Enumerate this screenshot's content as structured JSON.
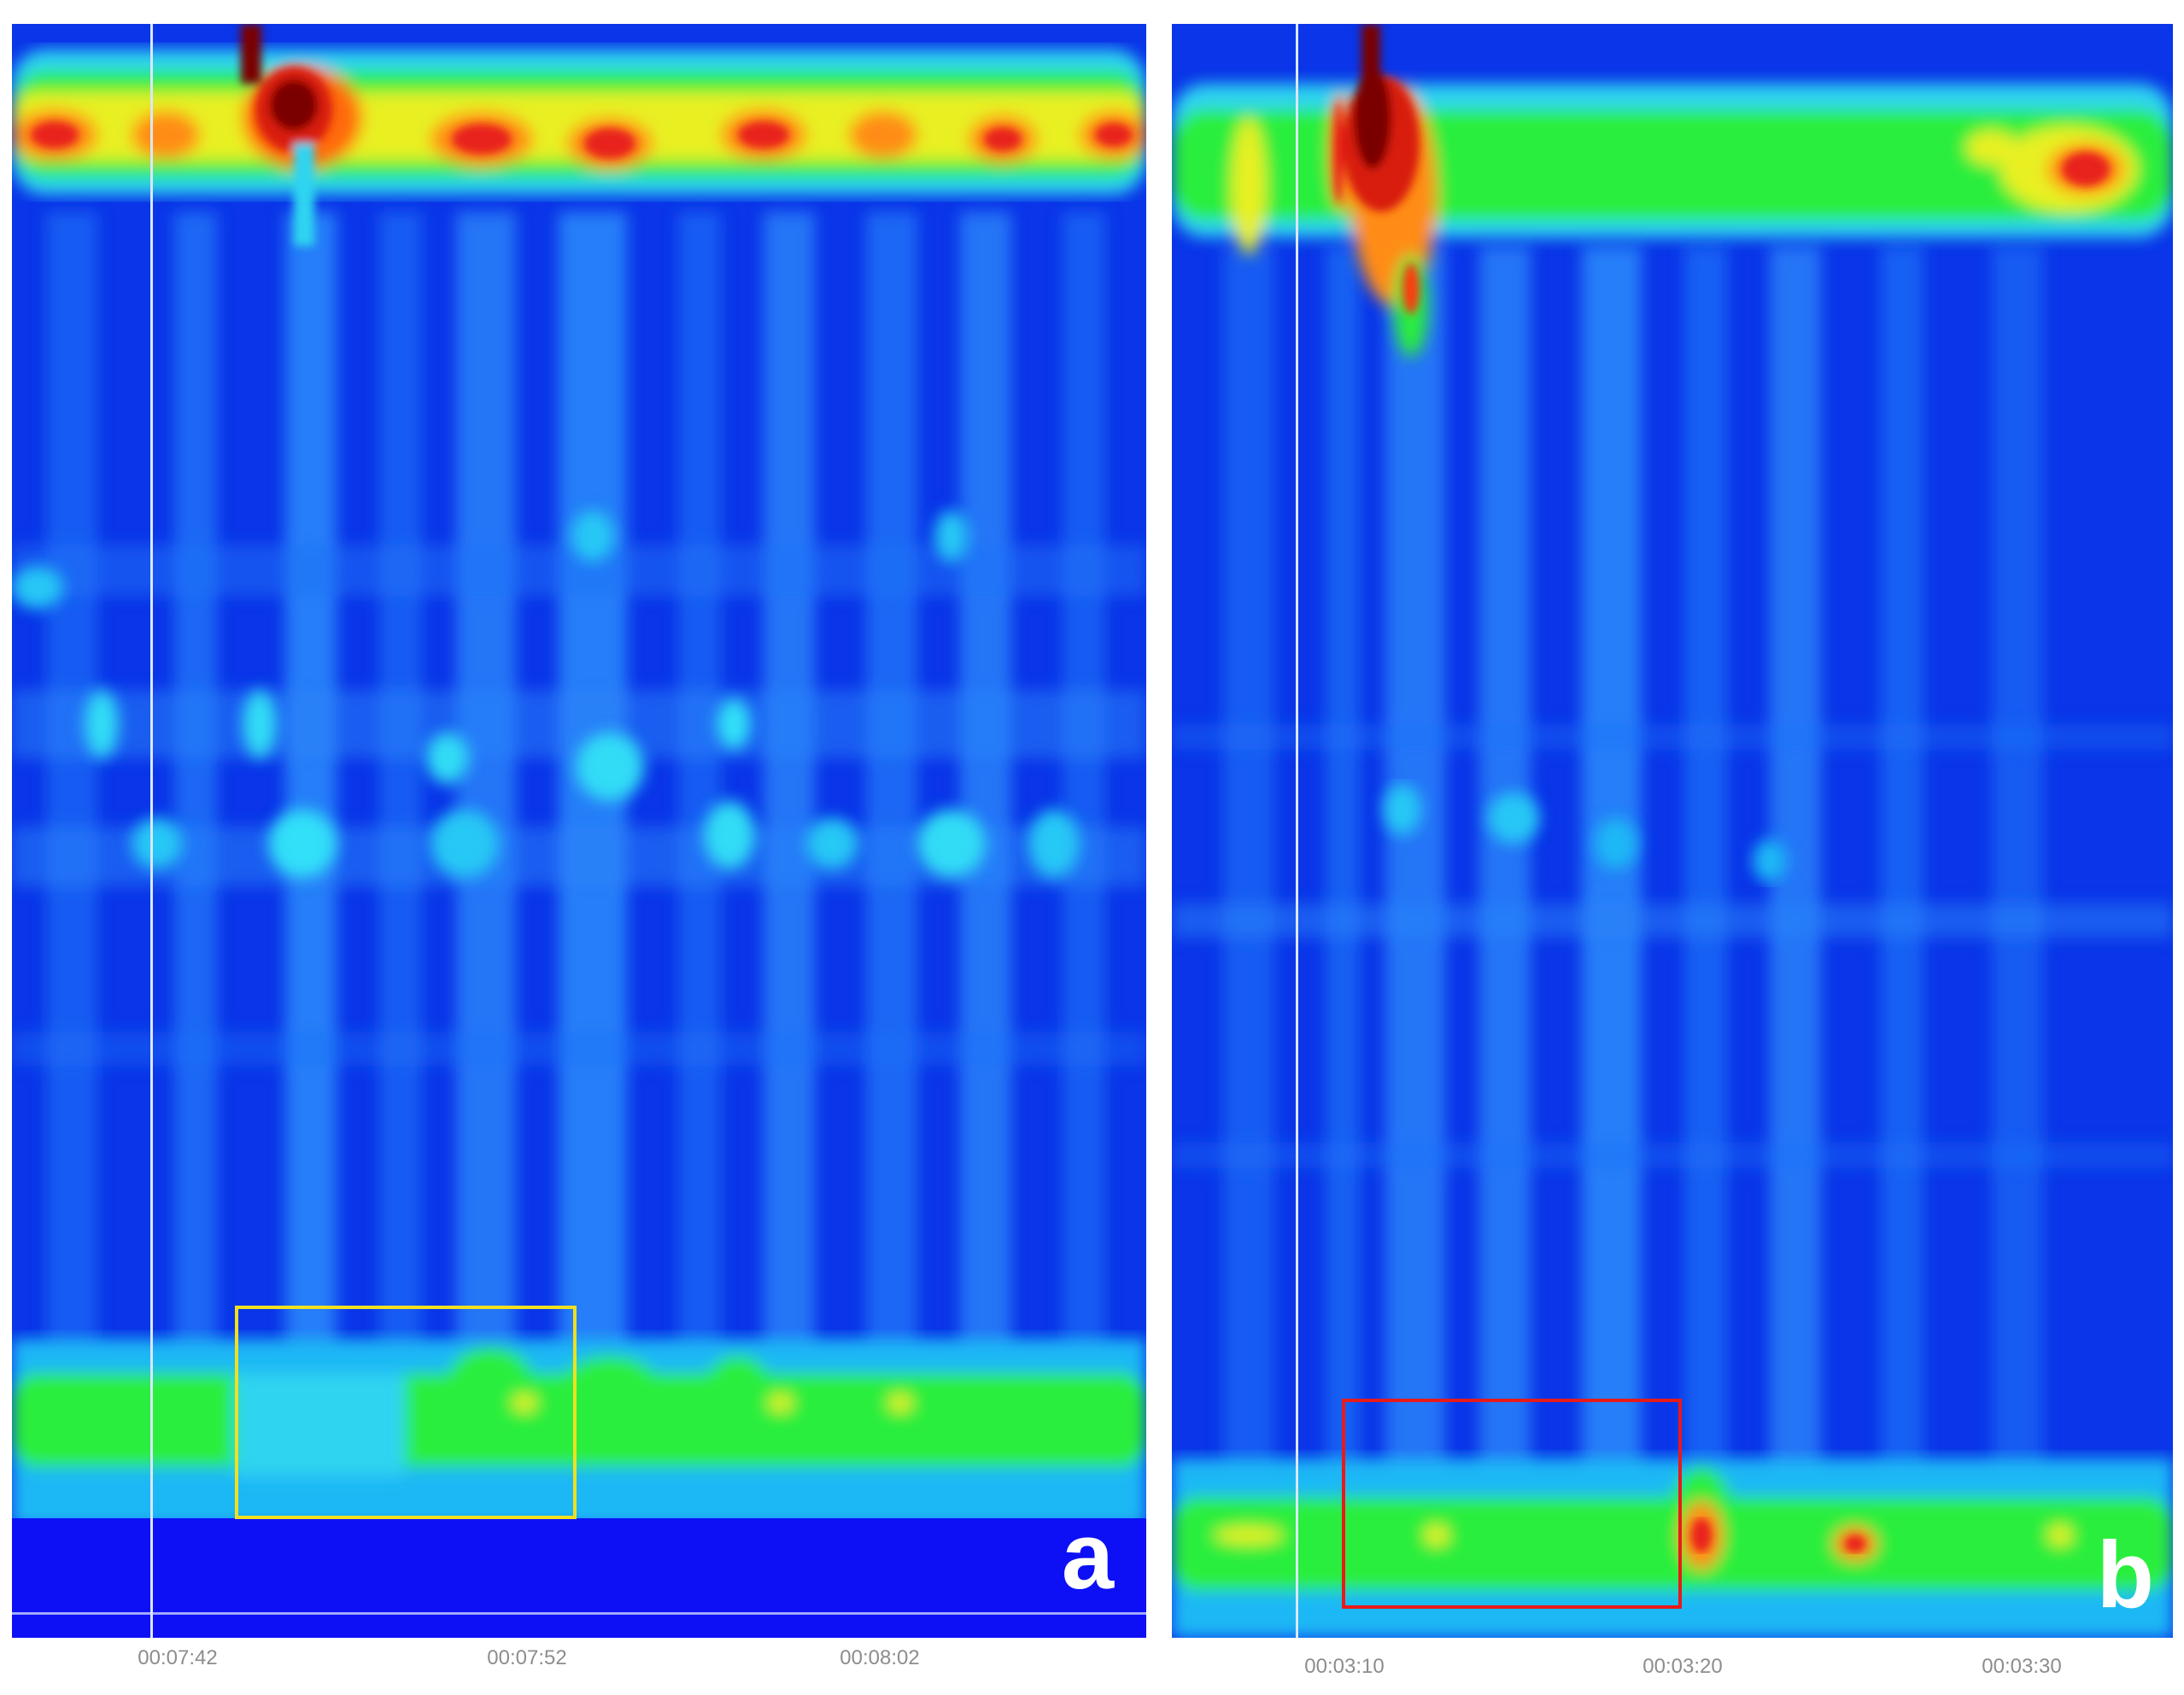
{
  "figure": {
    "panels": [
      {
        "id": "a",
        "letter": "a",
        "box_color": "#f0e020"
      },
      {
        "id": "b",
        "letter": "b",
        "box_color": "#e81a1a"
      }
    ]
  },
  "chart_data": [
    {
      "type": "heatmap",
      "panel": "a",
      "title": "",
      "xlabel": "",
      "ylabel": "",
      "x_ticks": [
        "00:07:42",
        "00:07:52",
        "00:08:02"
      ],
      "x_range": [
        "00:07:37",
        "00:08:09"
      ],
      "colormap": "jet",
      "highlight_box": {
        "color": "#f0e020",
        "time_start": "00:07:44",
        "time_end": "00:07:53"
      },
      "marker_line_time": "00:07:41"
    },
    {
      "type": "heatmap",
      "panel": "b",
      "title": "",
      "xlabel": "",
      "ylabel": "",
      "x_ticks": [
        "00:03:10",
        "00:03:20",
        "00:03:30"
      ],
      "x_range": [
        "00:03:05",
        "00:03:34"
      ],
      "colormap": "jet",
      "highlight_box": {
        "color": "#e81a1a",
        "time_start": "00:03:10",
        "time_end": "00:03:20"
      },
      "marker_line_time": "00:03:09"
    }
  ]
}
